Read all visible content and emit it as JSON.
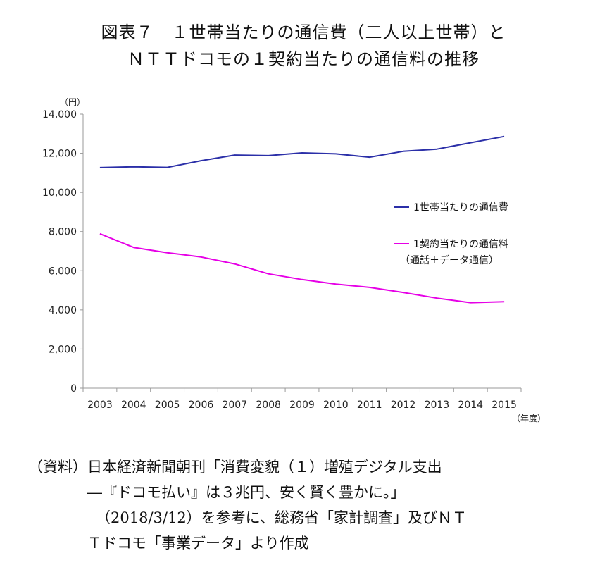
{
  "title_line1": "図表７　１世帯当たりの通信費（二人以上世帯）と",
  "title_line2": "ＮＴＴドコモの１契約当たりの通信料の推移",
  "source_lines": [
    "（資料）日本経済新聞朝刊「消費変貌（１）増殖デジタル支出",
    "―『ドコモ払い』は３兆円、安く賢く豊かに。」",
    "（2018/3/12）を参考に、総務省「家計調査」及びＮＴ",
    "Ｔドコモ「事業データ」より作成"
  ],
  "chart_data": {
    "type": "line",
    "x": [
      2003,
      2004,
      2005,
      2006,
      2007,
      2008,
      2009,
      2010,
      2011,
      2012,
      2013,
      2014,
      2015
    ],
    "x_tick_labels": [
      "2003",
      "2004",
      "2005",
      "2006",
      "2007",
      "2008",
      "2009",
      "2010",
      "2011",
      "2012",
      "2013",
      "2014",
      "2015"
    ],
    "xlabel": "（年度）",
    "ylabel": "（円）",
    "ylim": [
      0,
      14000
    ],
    "y_ticks": [
      0,
      2000,
      4000,
      6000,
      8000,
      10000,
      12000,
      14000
    ],
    "y_tick_labels": [
      "0",
      "2,000",
      "4,000",
      "6,000",
      "8,000",
      "10,000",
      "12,000",
      "14,000"
    ],
    "grid": false,
    "legend_position": "right",
    "series": [
      {
        "name": "1世帯当たりの通信費",
        "color": "#2b2fa8",
        "values": [
          11270,
          11310,
          11280,
          11620,
          11910,
          11880,
          12020,
          11970,
          11800,
          12100,
          12210,
          12540,
          12860
        ]
      },
      {
        "name": "1契約当たりの通信料",
        "name_line2": "（通話＋データ通信）",
        "color": "#e600e6",
        "values": [
          7890,
          7190,
          6920,
          6700,
          6350,
          5840,
          5550,
          5320,
          5150,
          4890,
          4600,
          4370,
          4420
        ]
      }
    ]
  }
}
